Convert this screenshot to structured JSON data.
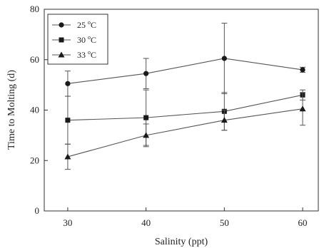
{
  "chart_data": {
    "type": "line",
    "title": "",
    "xlabel": "Salinity (ppt)",
    "ylabel": "Time to Molting (d)",
    "x": [
      30,
      40,
      50,
      60
    ],
    "xlim": [
      27,
      62
    ],
    "ylim": [
      0,
      80
    ],
    "xticks": [
      "30",
      "40",
      "50",
      "60"
    ],
    "yticks": [
      "0",
      "20",
      "40",
      "60",
      "80"
    ],
    "grid": false,
    "legend_position": "top-left",
    "series": [
      {
        "name": "25 °C",
        "name_parts": [
          "25 ",
          "o",
          "C"
        ],
        "marker": "circle",
        "values": [
          50.5,
          54.5,
          60.5,
          56
        ],
        "error": [
          5,
          6,
          14,
          1
        ]
      },
      {
        "name": "30 °C",
        "name_parts": [
          "30 ",
          "o",
          "C"
        ],
        "marker": "square",
        "values": [
          36,
          37,
          39.5,
          46
        ],
        "error": [
          9.5,
          11,
          7.5,
          2
        ]
      },
      {
        "name": "33 °C",
        "name_parts": [
          "33 ",
          "o",
          "C"
        ],
        "marker": "triangle",
        "values": [
          21.5,
          30,
          36,
          40.5
        ],
        "error": [
          5,
          4.5,
          4,
          6.5
        ]
      }
    ]
  },
  "colors": {
    "ink": "#1a1a1a",
    "line": "#555555"
  }
}
